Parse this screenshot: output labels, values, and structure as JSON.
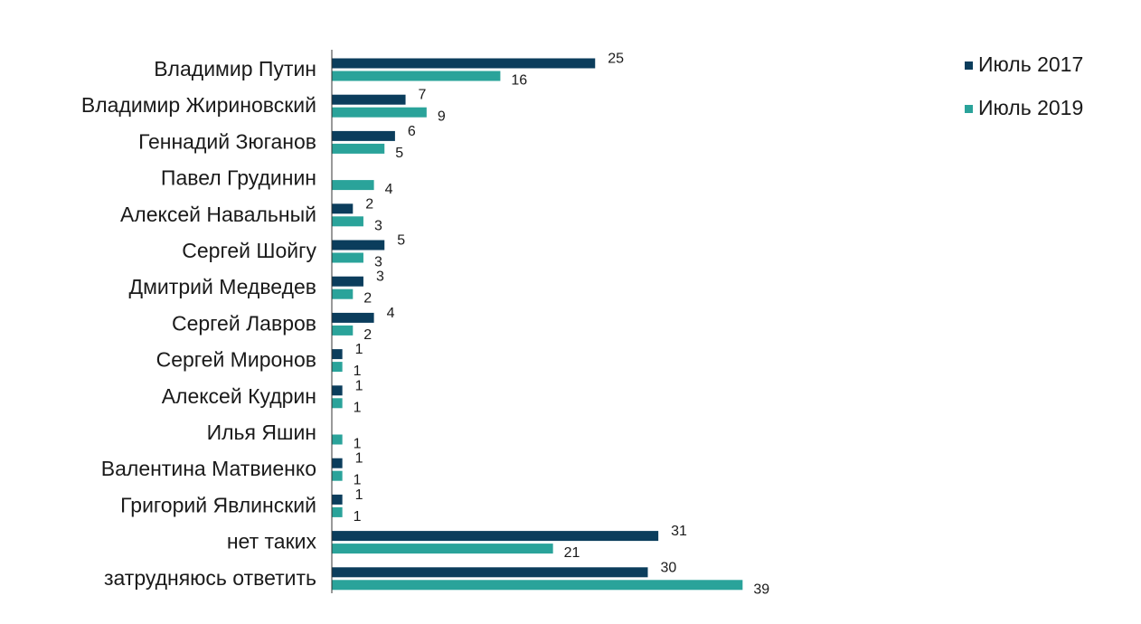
{
  "colors": {
    "series_2017": "#0b3d5c",
    "series_2019": "#2aa39a",
    "axis": "#333333"
  },
  "chart_data": {
    "type": "bar",
    "orientation": "horizontal",
    "categories": [
      "Владимир Путин",
      "Владимир Жириновский",
      "Геннадий Зюганов",
      "Павел Грудинин",
      "Алексей Навальный",
      "Сергей Шойгу",
      "Дмитрий Медведев",
      "Сергей Лавров",
      "Сергей Миронов",
      "Алексей Кудрин",
      "Илья Яшин",
      "Валентина Матвиенко",
      "Григорий Явлинский",
      "нет таких",
      "затрудняюсь ответить"
    ],
    "series": [
      {
        "name": "Июль 2017",
        "values": [
          25,
          7,
          6,
          null,
          2,
          5,
          3,
          4,
          1,
          1,
          null,
          1,
          1,
          31,
          30
        ]
      },
      {
        "name": "Июль 2019",
        "values": [
          16,
          9,
          5,
          4,
          3,
          3,
          2,
          2,
          1,
          1,
          1,
          1,
          1,
          21,
          39
        ]
      }
    ],
    "title": "",
    "xlabel": "",
    "ylabel": "",
    "xlim": [
      0,
      40
    ],
    "grid": false,
    "legend_position": "top-right",
    "data_labels": true
  }
}
